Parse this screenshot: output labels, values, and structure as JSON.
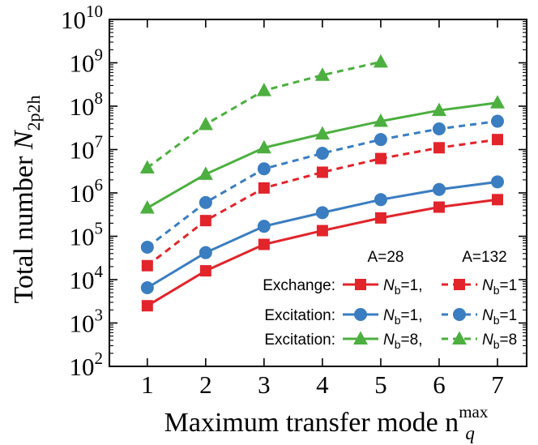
{
  "chart_data": {
    "type": "line",
    "xlabel": {
      "main": "Maximum transfer mode n",
      "sub": "q",
      "sup": "max"
    },
    "ylabel": {
      "main": "Total number N",
      "sub": "2p2h"
    },
    "x_ticks": [
      "1",
      "2",
      "3",
      "4",
      "5",
      "6",
      "7"
    ],
    "y_ticks": [
      {
        "base": "10",
        "exp": "2"
      },
      {
        "base": "10",
        "exp": "3"
      },
      {
        "base": "10",
        "exp": "4"
      },
      {
        "base": "10",
        "exp": "5"
      },
      {
        "base": "10",
        "exp": "6"
      },
      {
        "base": "10",
        "exp": "7"
      },
      {
        "base": "10",
        "exp": "8"
      },
      {
        "base": "10",
        "exp": "9"
      },
      {
        "base": "10",
        "exp": "10"
      }
    ],
    "xlim": [
      0.35,
      7.5
    ],
    "ylim": [
      100,
      10000000000
    ],
    "yscale": "log",
    "grid": false,
    "legend": {
      "placement": "bottom-right",
      "col_headers": [
        "A=28",
        "A=132"
      ],
      "rows": [
        {
          "label": "Exchange:",
          "entry_a28": "=1,",
          "entry_a132": "=1"
        },
        {
          "label": "Excitation:",
          "entry_a28": "=1,",
          "entry_a132": "=1"
        },
        {
          "label": "Excitation:",
          "entry_a28": "=8,",
          "entry_a132": "=8"
        }
      ],
      "nb_symbol": "N",
      "nb_sub": "b"
    },
    "series": [
      {
        "group": "Exchange",
        "A": "28",
        "Nb": "1",
        "color": "#e2242b",
        "marker": "square",
        "dash": false,
        "x": [
          1,
          2,
          3,
          4,
          5,
          6,
          7
        ],
        "values": [
          2500,
          16000,
          65000,
          135000,
          265000,
          470000,
          700000
        ]
      },
      {
        "group": "Exchange",
        "A": "132",
        "Nb": "1",
        "color": "#e2242b",
        "marker": "square",
        "dash": true,
        "x": [
          1,
          2,
          3,
          4,
          5,
          6,
          7
        ],
        "values": [
          21000,
          230000,
          1300000,
          3000000,
          6200000,
          11000000,
          17000000
        ]
      },
      {
        "group": "Excitation",
        "A": "28",
        "Nb": "1",
        "color": "#3a7dc1",
        "marker": "circle",
        "dash": false,
        "x": [
          1,
          2,
          3,
          4,
          5,
          6,
          7
        ],
        "values": [
          6500,
          42000,
          170000,
          350000,
          700000,
          1200000,
          1800000
        ]
      },
      {
        "group": "Excitation",
        "A": "132",
        "Nb": "1",
        "color": "#3a7dc1",
        "marker": "circle",
        "dash": true,
        "x": [
          1,
          2,
          3,
          4,
          5,
          6,
          7
        ],
        "values": [
          56000,
          600000,
          3600000,
          8200000,
          17000000,
          30000000,
          45000000
        ]
      },
      {
        "group": "Excitation",
        "A": "28",
        "Nb": "8",
        "color": "#4caf3f",
        "marker": "triangle",
        "dash": false,
        "x": [
          1,
          2,
          3,
          4,
          5,
          6,
          7
        ],
        "values": [
          450000,
          2700000,
          11000000,
          23000000,
          45000000,
          80000000,
          120000000
        ]
      },
      {
        "group": "Excitation",
        "A": "132",
        "Nb": "8",
        "color": "#4caf3f",
        "marker": "triangle",
        "dash": true,
        "x": [
          1,
          2,
          3,
          4,
          5
        ],
        "values": [
          3800000,
          38000000,
          230000000,
          520000000,
          1050000000
        ]
      }
    ]
  }
}
